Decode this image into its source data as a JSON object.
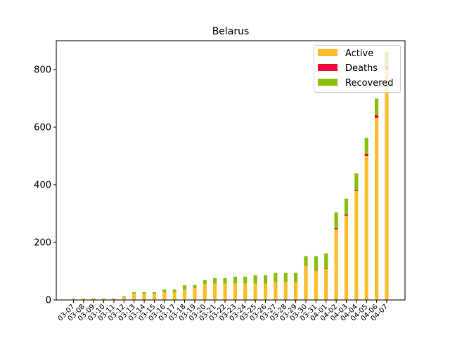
{
  "chart_data": {
    "type": "bar",
    "stacked": true,
    "title": "Belarus",
    "xlabel": "",
    "ylabel": "",
    "ylim": [
      0,
      900
    ],
    "yticks": [
      0,
      200,
      400,
      600,
      800
    ],
    "grid": false,
    "legend_position": "top-right",
    "categories": [
      "03-07",
      "03-08",
      "03-09",
      "03-10",
      "03-11",
      "03-12",
      "03-13",
      "03-14",
      "03-15",
      "03-16",
      "03-17",
      "03-18",
      "03-19",
      "03-20",
      "03-21",
      "03-22",
      "03-23",
      "03-24",
      "03-25",
      "03-26",
      "03-27",
      "03-28",
      "03-29",
      "03-30",
      "03-31",
      "04-01",
      "04-02",
      "04-03",
      "04-04",
      "04-05",
      "04-06",
      "04-07"
    ],
    "series": [
      {
        "name": "Active",
        "color": "#fbbf2d",
        "values": [
          6,
          6,
          6,
          6,
          6,
          9,
          22,
          21,
          21,
          27,
          27,
          36,
          41,
          56,
          57,
          57,
          57,
          57,
          57,
          57,
          62,
          62,
          62,
          118,
          102,
          108,
          245,
          293,
          379,
          500,
          632,
          800
        ]
      },
      {
        "name": "Deaths",
        "color": "#ee0a3c",
        "values": [
          0,
          0,
          0,
          0,
          0,
          0,
          0,
          0,
          0,
          0,
          0,
          0,
          0,
          0,
          0,
          0,
          0,
          0,
          0,
          0,
          0,
          0,
          0,
          0,
          2,
          2,
          4,
          4,
          4,
          8,
          10,
          13
        ]
      },
      {
        "name": "Recovered",
        "color": "#89c00d",
        "values": [
          0,
          0,
          0,
          0,
          0,
          3,
          5,
          6,
          6,
          9,
          9,
          15,
          11,
          13,
          19,
          19,
          24,
          24,
          29,
          29,
          32,
          32,
          32,
          34,
          48,
          52,
          55,
          55,
          57,
          55,
          57,
          48
        ]
      }
    ]
  }
}
